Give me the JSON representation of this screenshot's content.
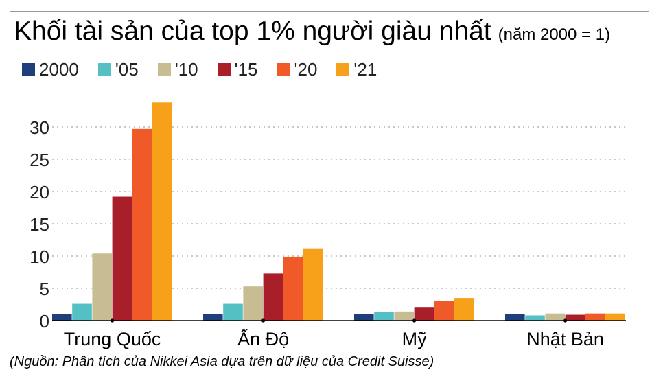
{
  "title": "Khối tài sản của top 1% người giàu nhất",
  "subtitle": "(năm 2000 = 1)",
  "source": "(Nguồn: Phân tích của Nikkei Asia dựa trên dữ liệu của Credit Suisse)",
  "colors": [
    "#1f3f7a",
    "#55c0c4",
    "#c8bd92",
    "#a81f2a",
    "#ef5a28",
    "#f7a11a"
  ],
  "chart_data": {
    "type": "bar",
    "title": "Khối tài sản của top 1% người giàu nhất",
    "xlabel": "",
    "ylabel": "",
    "ylim": [
      0,
      35
    ],
    "yticks": [
      0,
      5,
      10,
      15,
      20,
      25,
      30
    ],
    "categories": [
      "Trung Quốc",
      "Ấn Độ",
      "Mỹ",
      "Nhật Bản"
    ],
    "series": [
      {
        "name": "2000",
        "values": [
          1,
          1,
          1,
          1
        ]
      },
      {
        "name": "'05",
        "values": [
          2.6,
          2.6,
          1.3,
          0.8
        ]
      },
      {
        "name": "'10",
        "values": [
          10.4,
          5.3,
          1.4,
          1.1
        ]
      },
      {
        "name": "'15",
        "values": [
          19.2,
          7.3,
          2.0,
          0.9
        ]
      },
      {
        "name": "'20",
        "values": [
          29.7,
          9.9,
          3.0,
          1.1
        ]
      },
      {
        "name": "'21",
        "values": [
          33.8,
          11.1,
          3.5,
          1.1
        ]
      }
    ],
    "grid": true,
    "legend_position": "top-left"
  }
}
